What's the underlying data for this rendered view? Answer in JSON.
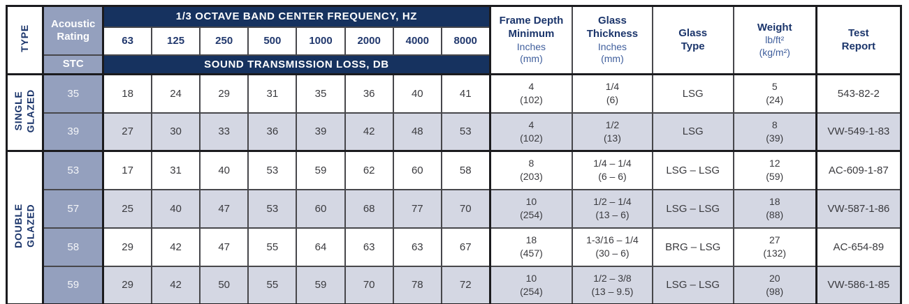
{
  "header": {
    "type_label": "TYPE",
    "acoustic_rating_label": "Acoustic\nRating",
    "stc_label": "STC",
    "octave_banner": "1/3 OCTAVE BAND CENTER FREQUENCY, HZ",
    "stl_banner": "SOUND TRANSMISSION LOSS, DB",
    "frequencies": [
      "63",
      "125",
      "250",
      "500",
      "1000",
      "2000",
      "4000",
      "8000"
    ],
    "columns": [
      {
        "title": "Frame Depth\nMinimum",
        "sub1": "Inches",
        "sub2": "(mm)"
      },
      {
        "title": "Glass\nThickness",
        "sub1": "Inches",
        "sub2": "(mm)"
      },
      {
        "title": "Glass\nType",
        "sub1": "",
        "sub2": ""
      },
      {
        "title": "Weight",
        "sub1": "lb/ft²",
        "sub2": "(kg/m²)"
      },
      {
        "title": "Test\nReport",
        "sub1": "",
        "sub2": ""
      }
    ]
  },
  "colors": {
    "navy_banner": "#16325f",
    "slate_column": "#94a0be",
    "shaded_row": "#d4d7e3",
    "navy_text": "#1b356b",
    "unit_text": "#3f5e9c",
    "data_text": "#3a3a3e"
  },
  "sections": [
    {
      "id": "single-glazed",
      "type_label": "SINGLE\nGLAZED",
      "rows": [
        {
          "stc": "35",
          "values": [
            "18",
            "24",
            "29",
            "31",
            "35",
            "36",
            "40",
            "41"
          ],
          "frame_depth": "4\n(102)",
          "glass_thickness": "1/4\n(6)",
          "glass_type": "LSG",
          "weight": "5\n(24)",
          "test_report": "543-82-2",
          "shaded": false
        },
        {
          "stc": "39",
          "values": [
            "27",
            "30",
            "33",
            "36",
            "39",
            "42",
            "48",
            "53"
          ],
          "frame_depth": "4\n(102)",
          "glass_thickness": "1/2\n(13)",
          "glass_type": "LSG",
          "weight": "8\n(39)",
          "test_report": "VW-549-1-83",
          "shaded": true
        }
      ]
    },
    {
      "id": "double-glazed",
      "type_label": "DOUBLE\nGLAZED",
      "rows": [
        {
          "stc": "53",
          "values": [
            "17",
            "31",
            "40",
            "53",
            "59",
            "62",
            "60",
            "58"
          ],
          "frame_depth": "8\n(203)",
          "glass_thickness": "1/4 – 1/4\n(6 – 6)",
          "glass_type": "LSG – LSG",
          "weight": "12\n(59)",
          "test_report": "AC-609-1-87",
          "shaded": false
        },
        {
          "stc": "57",
          "values": [
            "25",
            "40",
            "47",
            "53",
            "60",
            "68",
            "77",
            "70"
          ],
          "frame_depth": "10\n(254)",
          "glass_thickness": "1/2 – 1/4\n(13 – 6)",
          "glass_type": "LSG – LSG",
          "weight": "18\n(88)",
          "test_report": "VW-587-1-86",
          "shaded": true
        },
        {
          "stc": "58",
          "values": [
            "29",
            "42",
            "47",
            "55",
            "64",
            "63",
            "63",
            "67"
          ],
          "frame_depth": "18\n(457)",
          "glass_thickness": "1-3/16 – 1/4\n(30 – 6)",
          "glass_type": "BRG – LSG",
          "weight": "27\n(132)",
          "test_report": "AC-654-89",
          "shaded": false
        },
        {
          "stc": "59",
          "values": [
            "29",
            "42",
            "50",
            "55",
            "59",
            "70",
            "78",
            "72"
          ],
          "frame_depth": "10\n(254)",
          "glass_thickness": "1/2 – 3/8\n(13 – 9.5)",
          "glass_type": "LSG – LSG",
          "weight": "20\n(98)",
          "test_report": "VW-586-1-85",
          "shaded": true
        }
      ]
    }
  ]
}
